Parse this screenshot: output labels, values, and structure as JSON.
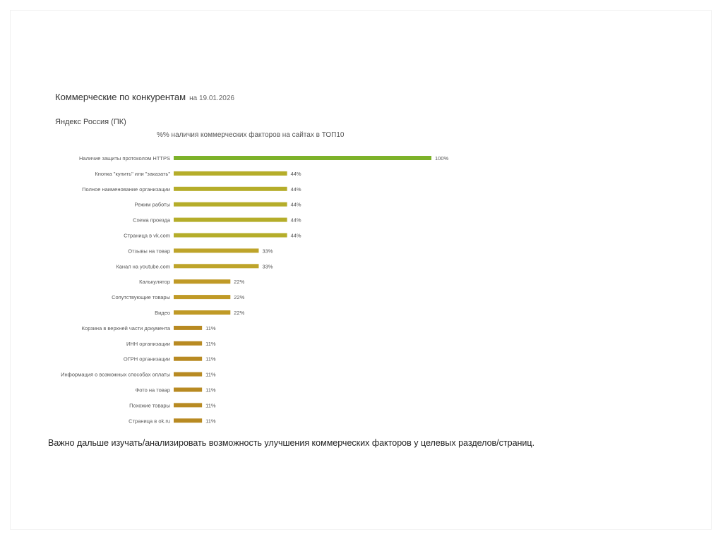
{
  "report": {
    "title": "Коммерческие по конкурентам",
    "date": "на 19.01.2026",
    "engine": "Яндекс Россия (ПК)"
  },
  "footer_note": "Важно дальше изучать/анализировать возможность улучшения коммерческих факторов у целевых разделов/страниц.",
  "chart_data": {
    "type": "bar",
    "orientation": "horizontal",
    "title": "%% наличия коммерческих факторов на сайтах в ТОП10",
    "xlabel": "",
    "ylabel": "",
    "xlim": [
      0,
      100
    ],
    "grid": false,
    "categories": [
      "Наличие защиты протоколом HTTPS",
      "Кнопка \"купить\" или \"заказать\"",
      "Полное наименование организации",
      "Режим работы",
      "Схема проезда",
      "Страница в vk.com",
      "Отзывы на товар",
      "Канал на youtube.com",
      "Калькулятор",
      "Сопутствующие товары",
      "Видео",
      "Корзина в верхней части документа",
      "ИНН организации",
      "ОГРН организации",
      "Информация о возможных способах оплаты",
      "Фото на товар",
      "Похожие товары",
      "Страница в ok.ru"
    ],
    "values": [
      100,
      44,
      44,
      44,
      44,
      44,
      33,
      33,
      22,
      22,
      22,
      11,
      11,
      11,
      11,
      11,
      11,
      11
    ],
    "labels": [
      "100%",
      "44%",
      "44%",
      "44%",
      "44%",
      "44%",
      "33%",
      "33%",
      "22%",
      "22%",
      "22%",
      "11%",
      "11%",
      "11%",
      "11%",
      "11%",
      "11%",
      "11%"
    ],
    "colors": {
      "100": "#7db22a",
      "44": "#b5ad2a",
      "33": "#bea42a",
      "22": "#c09a26",
      "11": "#b88a22"
    }
  }
}
